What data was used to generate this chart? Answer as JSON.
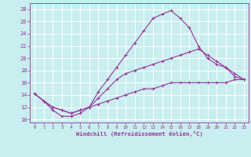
{
  "xlabel": "Windchill (Refroidissement éolien,°C)",
  "xlim": [
    -0.5,
    23.5
  ],
  "ylim": [
    9.5,
    29
  ],
  "yticks": [
    10,
    12,
    14,
    16,
    18,
    20,
    22,
    24,
    26,
    28
  ],
  "xticks": [
    0,
    1,
    2,
    3,
    4,
    5,
    6,
    7,
    8,
    9,
    10,
    11,
    12,
    13,
    14,
    15,
    16,
    17,
    18,
    19,
    20,
    21,
    22,
    23
  ],
  "bg_color": "#c8eef0",
  "line_color": "#993399",
  "grid_color": "#ffffff",
  "series": [
    {
      "x": [
        0,
        1,
        2,
        3,
        4,
        5,
        6,
        7,
        8,
        9,
        10,
        11,
        12,
        13,
        14,
        15,
        16,
        17,
        18,
        19,
        20,
        21,
        22,
        23
      ],
      "y": [
        14.2,
        13.0,
        11.5,
        10.5,
        10.5,
        11.0,
        12.0,
        14.5,
        16.5,
        18.5,
        20.5,
        22.5,
        24.5,
        26.5,
        27.2,
        27.8,
        26.5,
        25.0,
        22.0,
        20.0,
        19.0,
        18.5,
        17.0,
        16.5
      ]
    },
    {
      "x": [
        0,
        1,
        2,
        3,
        4,
        5,
        6,
        7,
        8,
        9,
        10,
        11,
        12,
        13,
        14,
        15,
        16,
        17,
        18,
        19,
        20,
        21,
        22,
        23
      ],
      "y": [
        14.2,
        13.0,
        12.0,
        11.5,
        11.0,
        11.5,
        12.0,
        13.5,
        15.0,
        16.5,
        17.5,
        18.0,
        18.5,
        19.0,
        19.5,
        20.0,
        20.5,
        21.0,
        21.5,
        20.5,
        19.5,
        18.5,
        17.5,
        16.5
      ]
    },
    {
      "x": [
        0,
        1,
        2,
        3,
        4,
        5,
        6,
        7,
        8,
        9,
        10,
        11,
        12,
        13,
        14,
        15,
        16,
        17,
        18,
        19,
        20,
        21,
        22,
        23
      ],
      "y": [
        14.2,
        13.0,
        12.0,
        11.5,
        11.0,
        11.5,
        12.0,
        12.5,
        13.0,
        13.5,
        14.0,
        14.5,
        15.0,
        15.0,
        15.5,
        16.0,
        16.0,
        16.0,
        16.0,
        16.0,
        16.0,
        16.0,
        16.5,
        16.5
      ]
    }
  ]
}
